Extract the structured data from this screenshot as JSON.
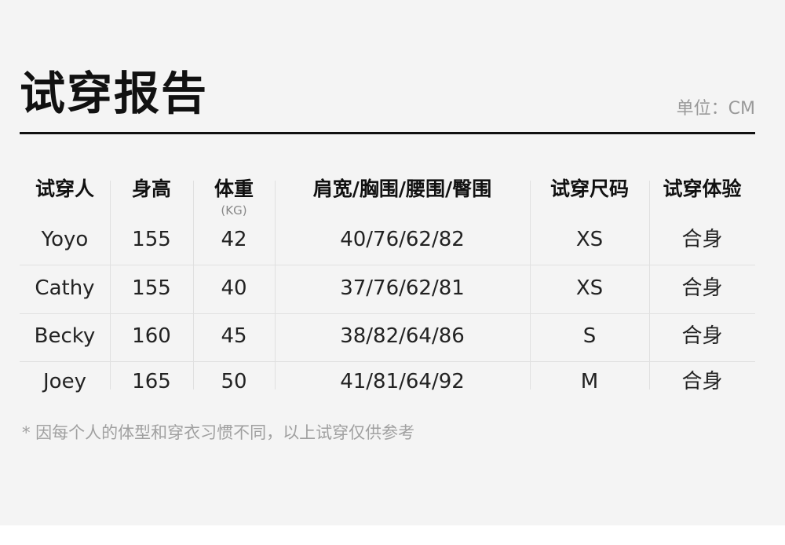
{
  "title": "试穿报告",
  "unit": "单位：CM",
  "table": {
    "headers": [
      "试穿人",
      "身高",
      "体重",
      "肩宽/胸围/腰围/臀围",
      "试穿尺码",
      "试穿体验"
    ],
    "weight_unit": "(KG)",
    "rows": [
      [
        "Yoyo",
        "155",
        "42",
        "40/76/62/82",
        "XS",
        "合身"
      ],
      [
        "Cathy",
        "155",
        "40",
        "37/76/62/81",
        "XS",
        "合身"
      ],
      [
        "Becky",
        "160",
        "45",
        "38/82/64/86",
        "S",
        "合身"
      ],
      [
        "Joey",
        "165",
        "50",
        "41/81/64/92",
        "M",
        "合身"
      ]
    ]
  },
  "note": "* 因每个人的体型和穿衣习惯不同，以上试穿仅供参考"
}
